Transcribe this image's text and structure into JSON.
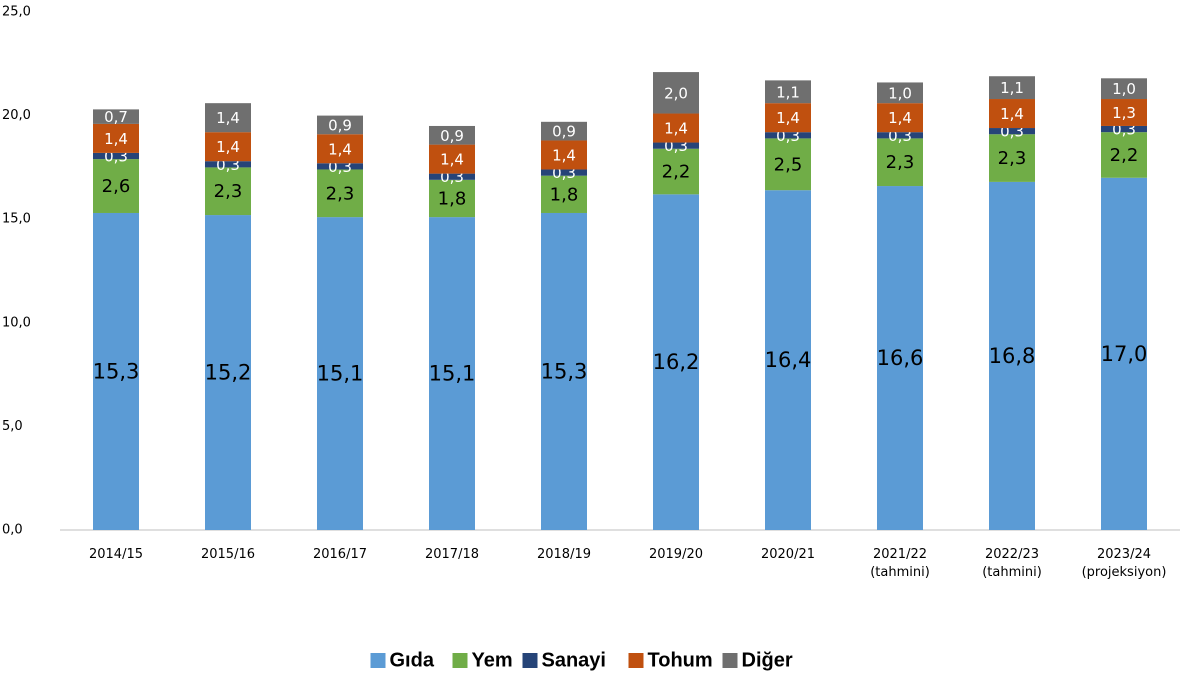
{
  "chart_data": {
    "type": "stacked_bar",
    "categories": [
      "2014/15",
      "2015/16",
      "2016/17",
      "2017/18",
      "2018/19",
      "2019/20",
      "2020/21",
      "2021/22\n(tahmini)",
      "2022/23\n(tahmini)",
      "2023/24\n(projeksiyon)"
    ],
    "series": [
      {
        "name": "Gıda",
        "color": "#5b9bd5",
        "values": [
          15.3,
          15.2,
          15.1,
          15.1,
          15.3,
          16.2,
          16.4,
          16.6,
          16.8,
          17.0
        ],
        "value_labels": [
          "15,3",
          "15,2",
          "15,1",
          "15,1",
          "15,3",
          "16,2",
          "16,4",
          "16,6",
          "16,8",
          "17,0"
        ]
      },
      {
        "name": "Yem",
        "color": "#70ad47",
        "values": [
          2.6,
          2.3,
          2.3,
          1.8,
          1.8,
          2.2,
          2.5,
          2.3,
          2.3,
          2.2
        ],
        "value_labels": [
          "2,6",
          "2,3",
          "2,3",
          "1,8",
          "1,8",
          "2,2",
          "2,5",
          "2,3",
          "2,3",
          "2,2"
        ]
      },
      {
        "name": "Sanayi",
        "color": "#264478",
        "values": [
          0.3,
          0.3,
          0.3,
          0.3,
          0.3,
          0.3,
          0.3,
          0.3,
          0.3,
          0.3
        ],
        "value_labels": [
          "0,3",
          "0,3",
          "0,3",
          "0,3",
          "0,3",
          "0,3",
          "0,3",
          "0,3",
          "0,3",
          "0,3"
        ]
      },
      {
        "name": "Tohum",
        "color": "#c0500f",
        "values": [
          1.4,
          1.4,
          1.4,
          1.4,
          1.4,
          1.4,
          1.4,
          1.4,
          1.4,
          1.3
        ],
        "value_labels": [
          "1,4",
          "1,4",
          "1,4",
          "1,4",
          "1,4",
          "1,4",
          "1,4",
          "1,4",
          "1,4",
          "1,3"
        ]
      },
      {
        "name": "Diğer",
        "color": "#6f6f6f",
        "values": [
          0.7,
          1.4,
          0.9,
          0.9,
          0.9,
          2.0,
          1.1,
          1.0,
          1.1,
          1.0
        ],
        "value_labels": [
          "0,7",
          "1,4",
          "0,9",
          "0,9",
          "0,9",
          "2,0",
          "1,1",
          "1,0",
          "1,1",
          "1,0"
        ]
      }
    ],
    "ylim": [
      0,
      25
    ],
    "yticks": [
      {
        "value": 0,
        "label": "0,0"
      },
      {
        "value": 5,
        "label": "5,0"
      },
      {
        "value": 10,
        "label": "10,0"
      },
      {
        "value": 15,
        "label": "15,0"
      },
      {
        "value": 20,
        "label": "20,0"
      },
      {
        "value": 25,
        "label": "25,0"
      }
    ],
    "grid": false,
    "legend": "bottom"
  }
}
